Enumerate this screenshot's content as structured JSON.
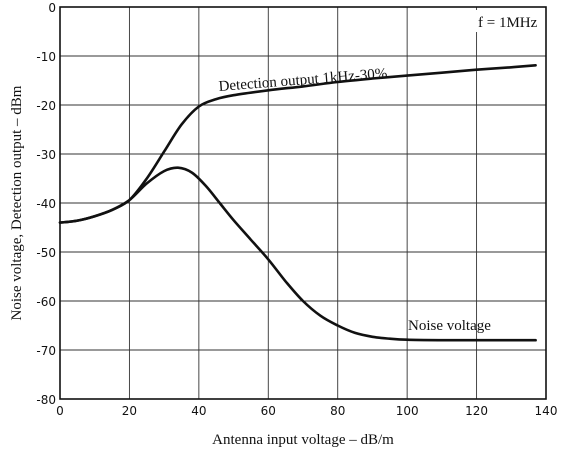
{
  "chart_data": {
    "type": "line",
    "title": "",
    "xlabel": "Antenna input voltage  –  dB/m",
    "ylabel": "Noise voltage, Detection output  –  dBm",
    "xlim": [
      0,
      140
    ],
    "ylim": [
      -80,
      0
    ],
    "xticks": [
      "0",
      "20",
      "40",
      "60",
      "80",
      "100",
      "120",
      "140"
    ],
    "yticks": [
      "0",
      "-10",
      "-20",
      "-30",
      "-40",
      "-50",
      "-60",
      "-70",
      "-80"
    ],
    "grid": true,
    "annotations": [
      "f = 1MHz"
    ],
    "series": [
      {
        "name": "Detection output 1kHz-30%",
        "x": [
          0,
          5,
          10,
          15,
          20,
          25,
          30,
          35,
          40,
          45,
          50,
          60,
          70,
          80,
          90,
          100,
          110,
          120,
          130,
          137
        ],
        "y": [
          -44,
          -43.6,
          -42.7,
          -41.4,
          -39.4,
          -35,
          -29.5,
          -24,
          -20.3,
          -18.8,
          -18,
          -17,
          -16.2,
          -15.3,
          -14.6,
          -14,
          -13.4,
          -12.8,
          -12.3,
          -11.9
        ]
      },
      {
        "name": "Noise voltage",
        "x": [
          0,
          5,
          10,
          15,
          20,
          25,
          30,
          34,
          38,
          42,
          46,
          50,
          55,
          60,
          65,
          70,
          75,
          80,
          85,
          90,
          95,
          100,
          110,
          120,
          130,
          137
        ],
        "y": [
          -44,
          -43.6,
          -42.7,
          -41.4,
          -39.4,
          -36,
          -33.5,
          -32.8,
          -33.8,
          -36.5,
          -40,
          -43.5,
          -47.5,
          -51.5,
          -56,
          -60,
          -63,
          -65,
          -66.5,
          -67.3,
          -67.7,
          -67.9,
          -68,
          -68,
          -68,
          -68
        ]
      }
    ]
  }
}
